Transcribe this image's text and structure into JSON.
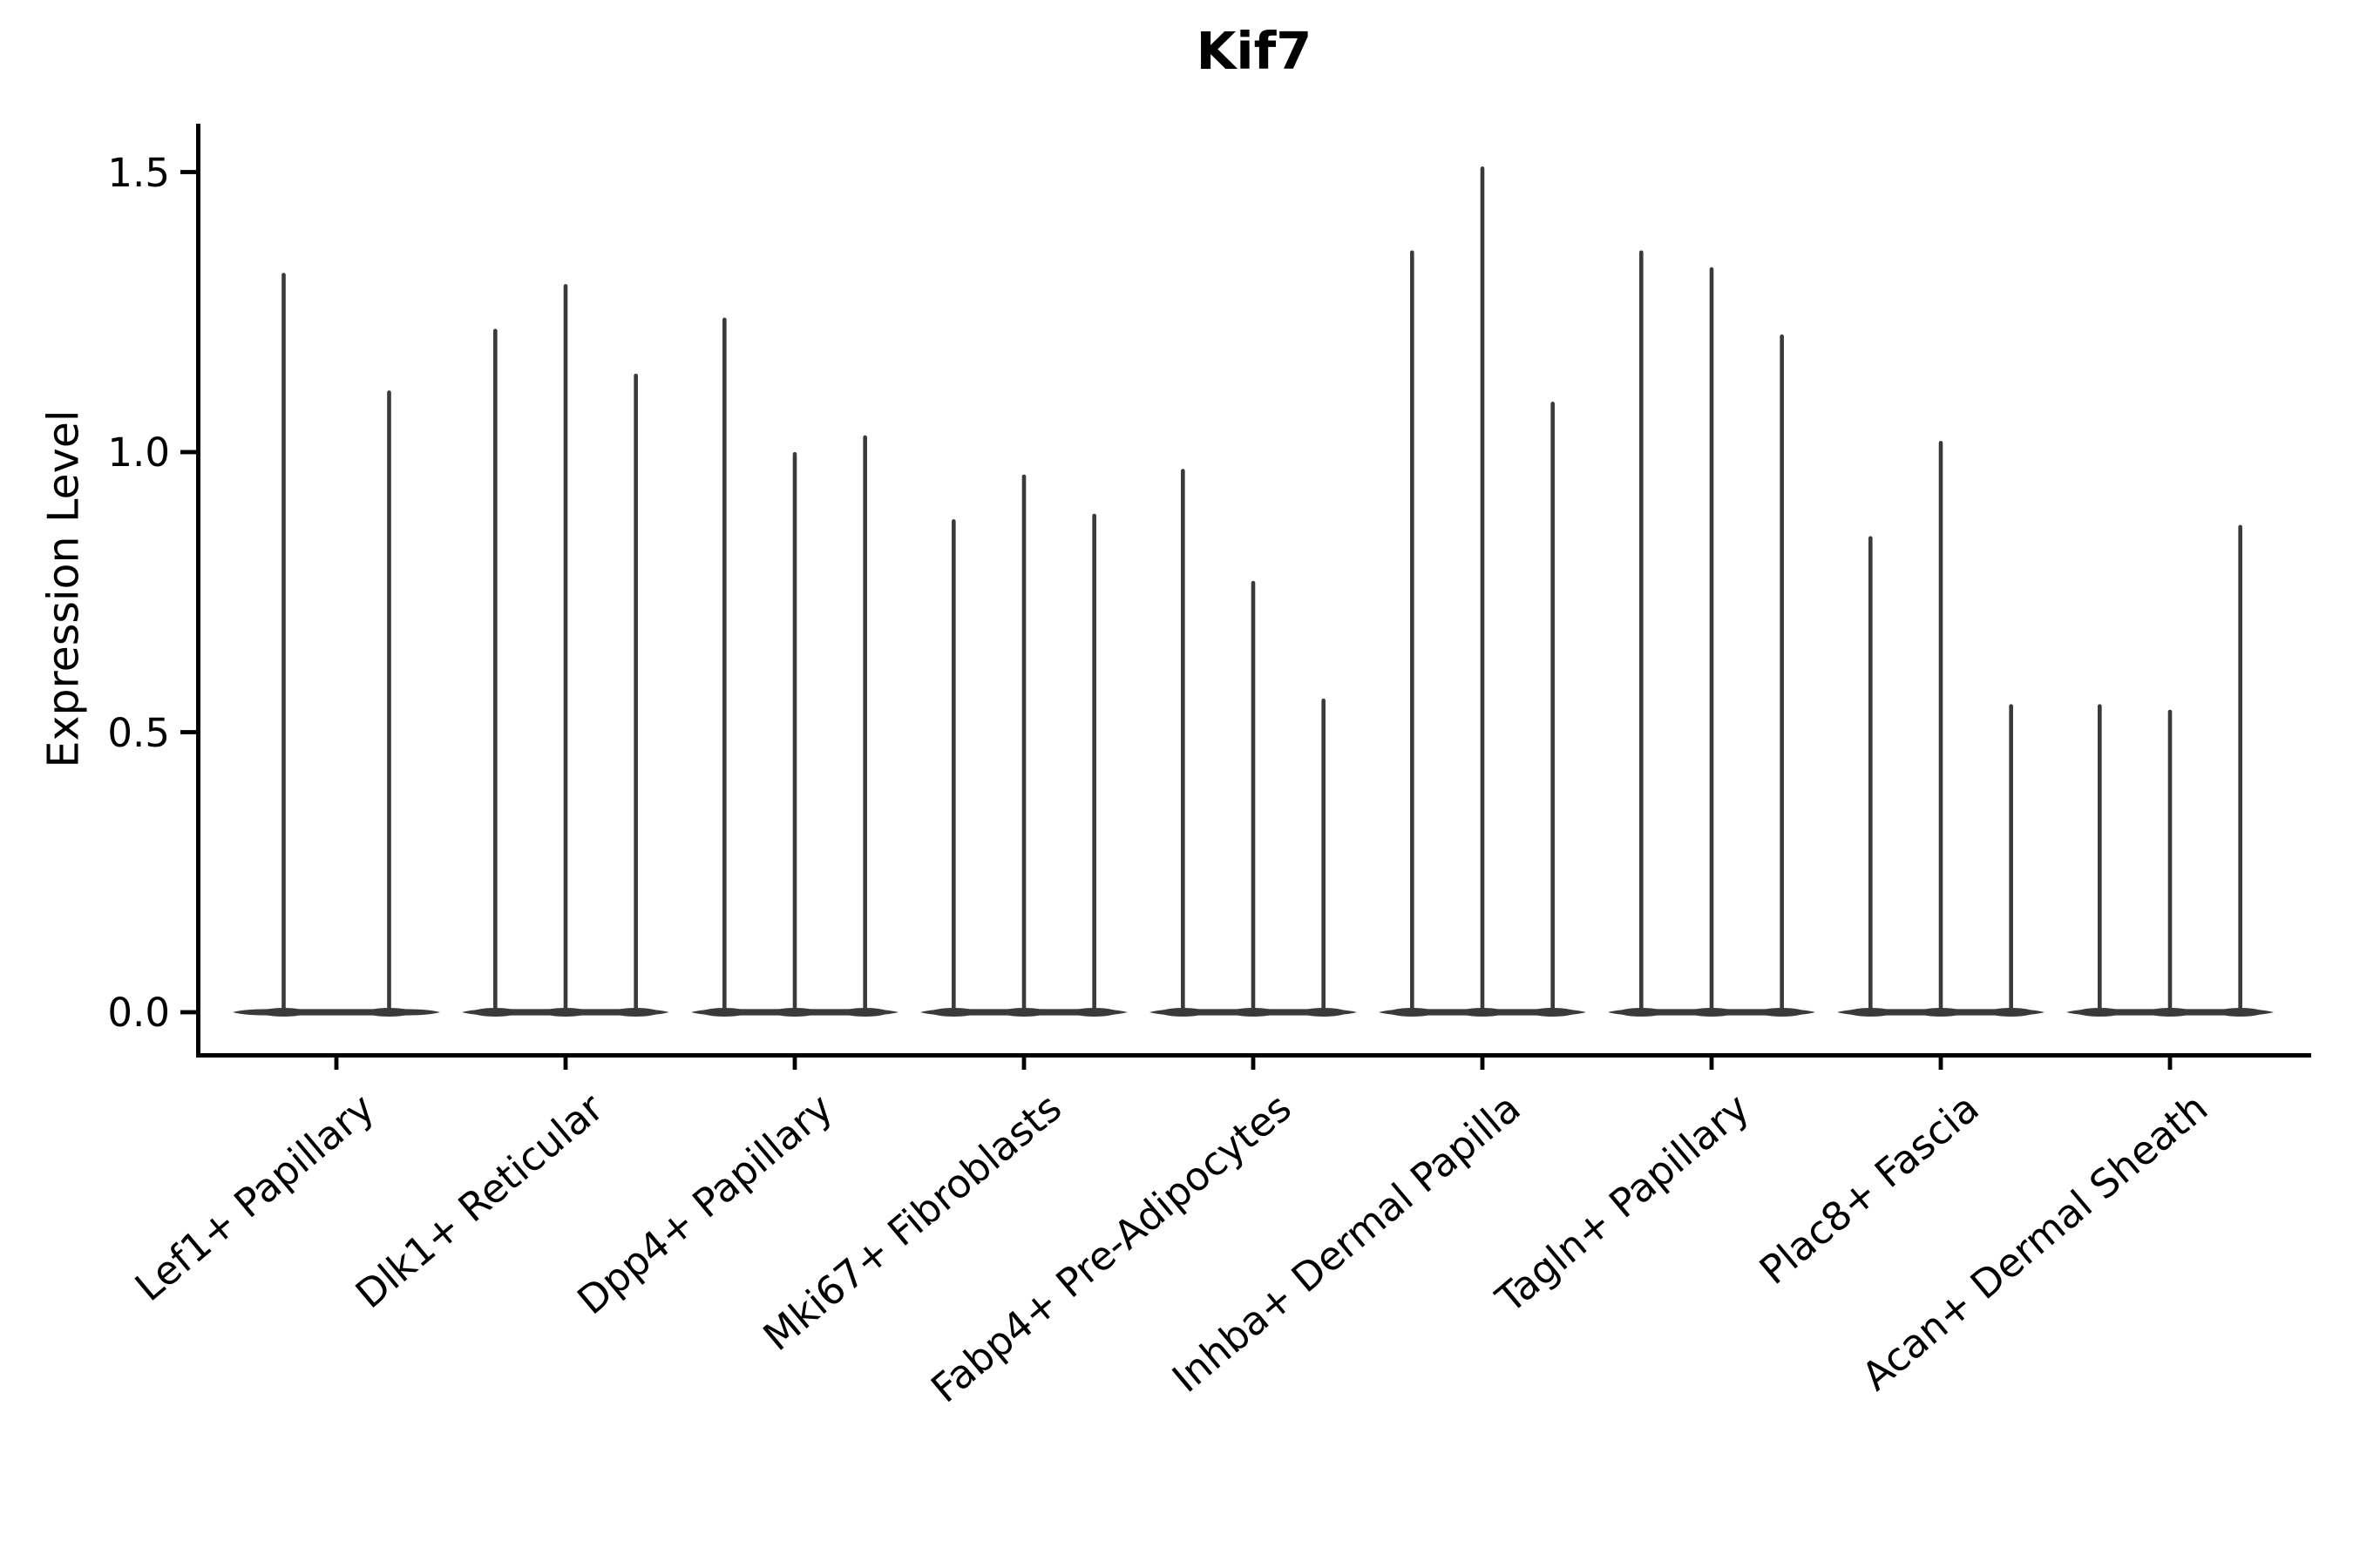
{
  "chart_data": {
    "type": "violin",
    "title": "Kif7",
    "xlabel": "",
    "ylabel": "Expression Level",
    "ytick_labels": [
      "0.0",
      "0.5",
      "1.0",
      "1.5"
    ],
    "yticks": [
      0.0,
      0.5,
      1.0,
      1.5
    ],
    "ylim": [
      -0.07,
      1.59
    ],
    "grid": false,
    "legend": null,
    "baseline_value": 0.0,
    "categories": [
      "Lef1+ Papillary",
      "Dlk1+ Reticular",
      "Dpp4+ Papillary",
      "Mki67+ Fibroblasts",
      "Fabp4+ Pre-Adipocytes",
      "Inhba+ Dermal Papilla",
      "Tagln+ Papillary",
      "Plac8+ Fascia",
      "Acan+ Dermal Sheath"
    ],
    "groups": [
      {
        "category": "Lef1+ Papillary",
        "violin_maxima": [
          1.32,
          1.11
        ]
      },
      {
        "category": "Dlk1+ Reticular",
        "violin_maxima": [
          1.22,
          1.3,
          1.14
        ]
      },
      {
        "category": "Dpp4+ Papillary",
        "violin_maxima": [
          1.24,
          1.0,
          1.03
        ]
      },
      {
        "category": "Mki67+ Fibroblasts",
        "violin_maxima": [
          0.88,
          0.96,
          0.89
        ]
      },
      {
        "category": "Fabp4+ Pre-Adipocytes",
        "violin_maxima": [
          0.97,
          0.77,
          0.56
        ]
      },
      {
        "category": "Inhba+ Dermal Papilla",
        "violin_maxima": [
          1.36,
          1.51,
          1.09
        ]
      },
      {
        "category": "Tagln+ Papillary",
        "violin_maxima": [
          1.36,
          1.33,
          1.21
        ]
      },
      {
        "category": "Plac8+ Fascia",
        "violin_maxima": [
          0.85,
          1.02,
          0.55
        ]
      },
      {
        "category": "Acan+ Dermal Sheath",
        "violin_maxima": [
          0.55,
          0.54,
          0.87
        ]
      }
    ],
    "colors": {
      "violin": "#3a3a3a",
      "axis": "#000000",
      "text": "#000000",
      "background": "#ffffff"
    }
  }
}
